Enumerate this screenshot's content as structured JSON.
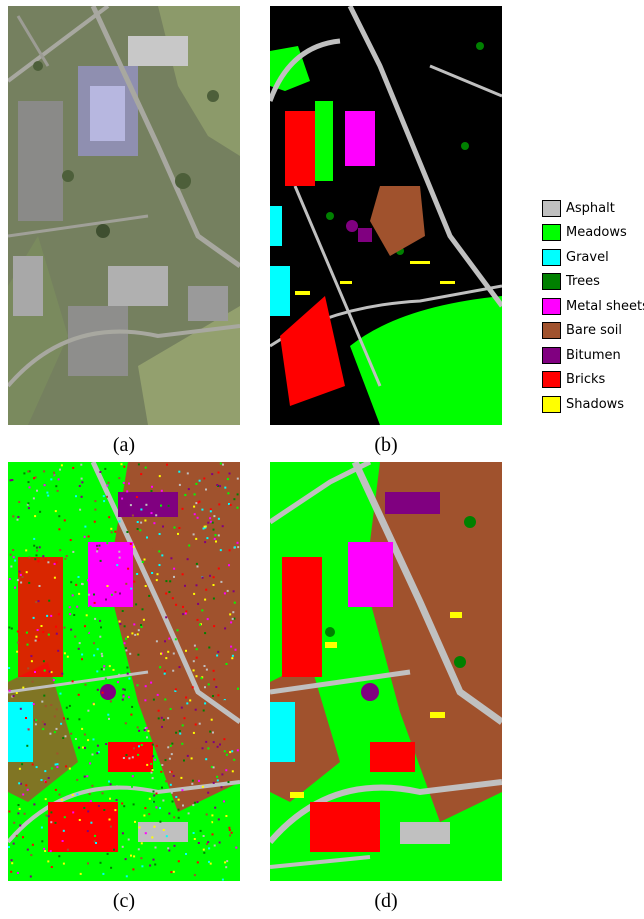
{
  "panels": [
    {
      "id": "a",
      "label": "(a)",
      "kind": "satellite-image"
    },
    {
      "id": "b",
      "label": "(b)",
      "kind": "ground-truth-map"
    },
    {
      "id": "c",
      "label": "(c)",
      "kind": "classification-map"
    },
    {
      "id": "d",
      "label": "(d)",
      "kind": "classification-map"
    }
  ],
  "legend": [
    {
      "label": "Asphalt",
      "color": "#c0c0c0"
    },
    {
      "label": "Meadows",
      "color": "#00ff00"
    },
    {
      "label": "Gravel",
      "color": "#00ffff"
    },
    {
      "label": "Trees",
      "color": "#008000"
    },
    {
      "label": "Metal sheets",
      "color": "#ff00ff"
    },
    {
      "label": "Bare soil",
      "color": "#a0522d"
    },
    {
      "label": "Bitumen",
      "color": "#800080"
    },
    {
      "label": "Bricks",
      "color": "#ff0000"
    },
    {
      "label": "Shadows",
      "color": "#ffff00"
    }
  ]
}
